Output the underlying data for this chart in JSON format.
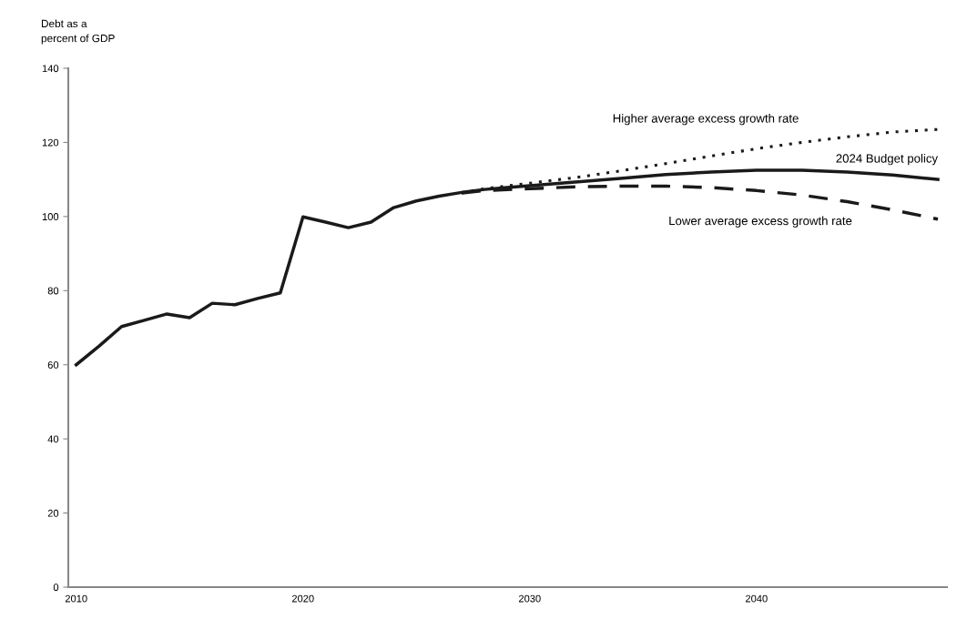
{
  "chart_data": {
    "type": "line",
    "ylabel": "Debt as a\npercent of GDP",
    "xlim": [
      2009.65,
      2048.4
    ],
    "xticks": [
      2010,
      2020,
      2030,
      2040
    ],
    "ylim": [
      0,
      140
    ],
    "yticks": [
      0,
      20,
      40,
      60,
      80,
      100,
      120,
      140
    ],
    "grid": false,
    "legend": false,
    "marker": "none",
    "series": [
      {
        "name": "2024 Budget policy",
        "color": "#1a1a1a",
        "line_style": "solid",
        "x": [
          2010,
          2011,
          2012,
          2013,
          2014,
          2015,
          2016,
          2017,
          2018,
          2019,
          2020,
          2021,
          2022,
          2023,
          2024,
          2025,
          2026,
          2027,
          2028,
          2029,
          2030,
          2032,
          2034,
          2036,
          2038,
          2040,
          2042,
          2044,
          2046,
          2048
        ],
        "values": [
          60,
          65,
          70.3,
          72,
          73.7,
          72.7,
          76.6,
          76.2,
          77.9,
          79.4,
          99.9,
          98.5,
          97,
          98.5,
          102.4,
          104.2,
          105.5,
          106.5,
          107.3,
          107.8,
          108.3,
          109.3,
          110.3,
          111.3,
          112,
          112.5,
          112.5,
          112,
          111.2,
          110
        ]
      },
      {
        "name": "Higher average excess growth rate",
        "color": "#1a1a1a",
        "line_style": "dotted",
        "x": [
          2027,
          2028,
          2030,
          2032,
          2034,
          2036,
          2038,
          2040,
          2042,
          2044,
          2046,
          2048
        ],
        "values": [
          106.5,
          107.5,
          109,
          110.5,
          112.3,
          114.3,
          116.3,
          118.3,
          120,
          121.5,
          122.8,
          123.5
        ]
      },
      {
        "name": "Lower average excess growth rate",
        "color": "#1a1a1a",
        "line_style": "dashed",
        "x": [
          2027,
          2028,
          2030,
          2032,
          2034,
          2036,
          2038,
          2040,
          2042,
          2044,
          2046,
          2048
        ],
        "values": [
          106.3,
          107,
          107.5,
          108,
          108.2,
          108.2,
          107.8,
          107,
          105.8,
          104,
          101.8,
          99.3
        ]
      }
    ]
  }
}
